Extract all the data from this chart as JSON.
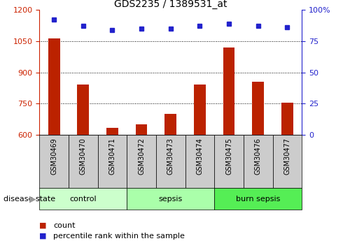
{
  "title": "GDS2235 / 1389531_at",
  "samples": [
    "GSM30469",
    "GSM30470",
    "GSM30471",
    "GSM30472",
    "GSM30473",
    "GSM30474",
    "GSM30475",
    "GSM30476",
    "GSM30477"
  ],
  "counts": [
    1062,
    840,
    635,
    650,
    700,
    840,
    1020,
    855,
    755
  ],
  "percentiles": [
    92,
    87,
    84,
    85,
    85,
    87,
    89,
    87,
    86
  ],
  "left_ylim": [
    600,
    1200
  ],
  "right_ylim": [
    0,
    100
  ],
  "left_yticks": [
    600,
    750,
    900,
    1050,
    1200
  ],
  "right_yticks": [
    0,
    25,
    50,
    75,
    100
  ],
  "right_yticklabels": [
    "0",
    "25",
    "50",
    "75",
    "100%"
  ],
  "bar_color": "#bb2200",
  "dot_color": "#2222cc",
  "groups": [
    {
      "label": "control",
      "start": 0,
      "end": 3,
      "color": "#ccffcc"
    },
    {
      "label": "sepsis",
      "start": 3,
      "end": 6,
      "color": "#aaffaa"
    },
    {
      "label": "burn sepsis",
      "start": 6,
      "end": 9,
      "color": "#55ee55"
    }
  ],
  "disease_state_label": "disease state",
  "legend_count_label": "count",
  "legend_pct_label": "percentile rank within the sample",
  "tick_area_color": "#cccccc",
  "left_ytick_color": "#cc2200",
  "right_ytick_color": "#2222cc"
}
